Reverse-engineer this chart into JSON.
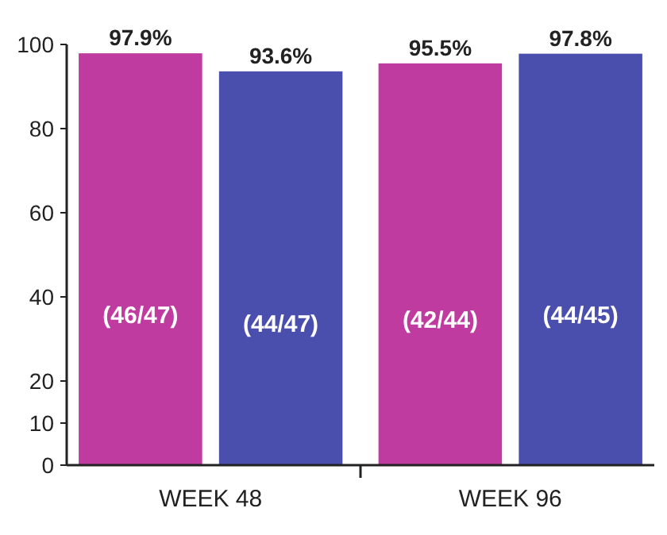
{
  "chart_data": {
    "type": "bar",
    "categories": [
      "WEEK 48",
      "WEEK 96"
    ],
    "series": [
      {
        "color": "#c03b9f",
        "values": [
          97.9,
          95.5
        ],
        "value_labels": [
          "97.9%",
          "95.5%"
        ]
      },
      {
        "color": "#4a4eac",
        "values": [
          93.6,
          97.8
        ],
        "value_labels": [
          "93.6%",
          "97.8%"
        ]
      }
    ],
    "ylim": [
      0,
      100
    ],
    "yticks": [
      0,
      10,
      20,
      40,
      60,
      80,
      100
    ],
    "grid": false,
    "annotations": [
      "(46/47)",
      "(44/47)",
      "(42/44)",
      "(44/45)"
    ]
  }
}
